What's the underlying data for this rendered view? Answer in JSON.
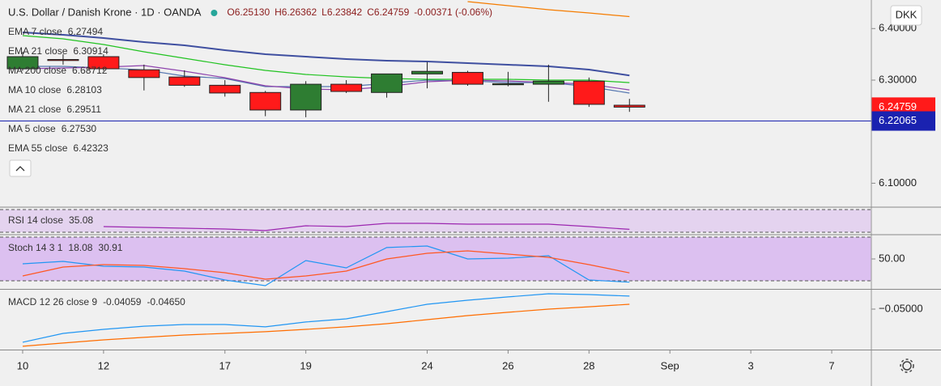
{
  "chart_data": [
    {
      "type": "candlestick",
      "title": "U.S. Dollar / Danish Krone · 1D · OANDA",
      "ohlc": [
        "O6.25130",
        "H6.26362",
        "L6.23842",
        "C6.24759",
        "-0.00371 (-0.06%)"
      ],
      "currency": "DKK",
      "xlim": [
        -0.56,
        20.98
      ],
      "xticks": [
        {
          "value": 0,
          "label": "10"
        },
        {
          "value": 2,
          "label": "12"
        },
        {
          "value": 5,
          "label": "17"
        },
        {
          "value": 7,
          "label": "19"
        },
        {
          "value": 10,
          "label": "24"
        },
        {
          "value": 12,
          "label": "26"
        },
        {
          "value": 14,
          "label": "28"
        },
        {
          "value": 16,
          "label": "Sep"
        },
        {
          "value": 18,
          "label": "3"
        },
        {
          "value": 20,
          "label": "7"
        }
      ],
      "ylim": [
        6.0551,
        6.4554
      ],
      "yticks": [
        {
          "value": 6.4,
          "label": "6.40000"
        },
        {
          "value": 6.3,
          "label": "6.30000"
        },
        {
          "value": 6.1,
          "label": "6.10000"
        }
      ],
      "up_color": "#2e7d32",
      "down_color": "#ff1a1a",
      "open": [
        6.322,
        6.34,
        6.3455,
        6.32,
        6.306,
        6.29,
        6.276,
        6.242,
        6.292,
        6.276,
        6.312,
        6.315,
        6.291,
        6.292,
        6.298,
        6.2513
      ],
      "high": [
        6.355,
        6.35,
        6.35,
        6.33,
        6.319,
        6.3,
        6.279,
        6.298,
        6.3,
        6.312,
        6.335,
        6.318,
        6.316,
        6.33,
        6.305,
        6.26362
      ],
      "low": [
        6.318,
        6.33,
        6.318,
        6.28,
        6.287,
        6.268,
        6.23,
        6.228,
        6.275,
        6.266,
        6.284,
        6.289,
        6.288,
        6.258,
        6.248,
        6.23842
      ],
      "close": [
        6.3455,
        6.338,
        6.322,
        6.305,
        6.29,
        6.275,
        6.242,
        6.292,
        6.278,
        6.312,
        6.317,
        6.292,
        6.293,
        6.298,
        6.253,
        6.24759
      ],
      "series": [
        {
          "name": "EMA 7 close",
          "color": "#5577b0",
          "last_label": "6.27494",
          "values": [
            6.3267,
            6.3267,
            6.3235,
            6.32,
            6.3078,
            6.3031,
            6.2874,
            6.2874,
            6.2874,
            6.2937,
            6.3,
            6.2984,
            6.2953,
            6.2953,
            6.2874,
            6.27494
          ]
        },
        {
          "name": "EMA 21 close",
          "color": "#3f4fa0",
          "last_label": "6.30914",
          "values": [
            6.3926,
            6.3879,
            6.3816,
            6.3738,
            6.3675,
            6.3581,
            6.3502,
            6.3455,
            6.3408,
            6.3377,
            6.3361,
            6.333,
            6.3298,
            6.3267,
            6.3204,
            6.30914
          ]
        },
        {
          "name": "MA 200 close",
          "color": "#b71c1c",
          "last_label": "6.68712"
        },
        {
          "name": "MA 10 close",
          "color": "#8e44ad",
          "last_label": "6.28103",
          "values": [
            6.322,
            6.3235,
            6.3251,
            6.3283,
            6.3173,
            6.3047,
            6.289,
            6.2827,
            6.2812,
            6.2874,
            6.2969,
            6.3,
            6.2984,
            6.2953,
            6.2922,
            6.28103
          ]
        },
        {
          "name": "MA 21 close",
          "color": "#22c322",
          "last_label": "6.29511",
          "values": [
            6.3863,
            6.38,
            6.369,
            6.3549,
            6.3424,
            6.3298,
            6.3188,
            6.311,
            6.3063,
            6.3031,
            6.3016,
            6.3016,
            6.3016,
            6.3,
            6.3,
            6.29511
          ]
        },
        {
          "name": "MA 5 close",
          "color": "#6a3fa0",
          "last_label": "6.27530"
        },
        {
          "name": "EMA 55 close",
          "color": "#f57c00",
          "last_label": "6.42323",
          "values": [
            null,
            null,
            null,
            null,
            null,
            null,
            null,
            null,
            null,
            null,
            null,
            6.4523,
            6.4444,
            6.4366,
            6.4303,
            6.42323
          ]
        }
      ],
      "price_line": 6.22065,
      "price_line_color": "#1a22b0"
    },
    {
      "type": "line",
      "title": "RSI 14 close",
      "ylim": [
        27.1,
        72.9
      ],
      "yticks": [],
      "bands": [
        30,
        70
      ],
      "band_color": "#e4d3ef",
      "series": [
        {
          "color": "#9c27b0",
          "last_label": "35.08",
          "values": [
            null,
            null,
            40,
            38.6,
            37.1,
            35.7,
            32.9,
            41.4,
            40,
            45.7,
            45.7,
            44.3,
            44.3,
            44.3,
            40,
            35.08
          ]
        }
      ]
    },
    {
      "type": "line",
      "title": "Stoch 14 3 1",
      "ylim": [
        8.9,
        82.2
      ],
      "yticks": [
        {
          "value": 50,
          "label": "50.00"
        }
      ],
      "bands": [
        20,
        80
      ],
      "band_color": "#dcc0f0",
      "series": [
        {
          "color": "#2196f3",
          "last_label": "18.08",
          "values": [
            43.3,
            46.7,
            40,
            38.9,
            33.3,
            21.1,
            13.3,
            47.8,
            37.8,
            65.6,
            67.8,
            50,
            51.1,
            54.4,
            21.1,
            18.08
          ]
        },
        {
          "color": "#ff5722",
          "last_label": "30.91",
          "values": [
            26.7,
            38.9,
            42.2,
            41.1,
            36.7,
            31.1,
            22.2,
            26.7,
            33.3,
            50,
            57.8,
            61.1,
            56.7,
            52.2,
            42.2,
            30.91
          ]
        }
      ]
    },
    {
      "type": "line",
      "title": "MACD 12 26 close 9",
      "ylim": [
        -0.0792,
        -0.036
      ],
      "yticks": [
        {
          "value": -0.05,
          "label": "−0.05000"
        }
      ],
      "series": [
        {
          "color": "#2196f3",
          "last_label": "-0.04059",
          "values": [
            -0.0739,
            -0.0675,
            -0.0646,
            -0.0623,
            -0.0611,
            -0.0611,
            -0.0628,
            -0.0593,
            -0.057,
            -0.0518,
            -0.0465,
            -0.0436,
            -0.0412,
            -0.0389,
            -0.0395,
            -0.04059
          ]
        },
        {
          "color": "#ff6d00",
          "last_label": "-0.04650",
          "values": [
            -0.0768,
            -0.0745,
            -0.0722,
            -0.0704,
            -0.0687,
            -0.0675,
            -0.0663,
            -0.0646,
            -0.0628,
            -0.0605,
            -0.0576,
            -0.0547,
            -0.0523,
            -0.05,
            -0.0483,
            -0.0465
          ]
        }
      ]
    }
  ]
}
